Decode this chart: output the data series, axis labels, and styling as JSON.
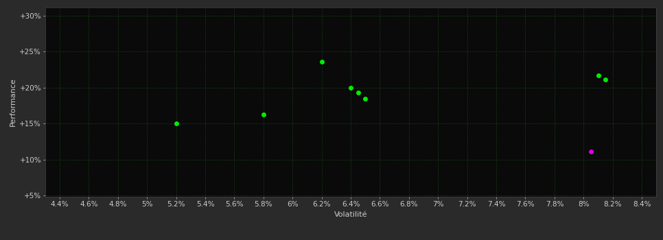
{
  "background_color": "#2a2a2a",
  "plot_bg_color": "#0a0a0a",
  "grid_color": "#1a4a1a",
  "text_color": "#cccccc",
  "xlabel": "Volatilité",
  "ylabel": "Performance",
  "xlim": [
    0.043,
    0.085
  ],
  "ylim": [
    0.048,
    0.312
  ],
  "xtick_values": [
    0.044,
    0.046,
    0.048,
    0.05,
    0.052,
    0.054,
    0.056,
    0.058,
    0.06,
    0.062,
    0.064,
    0.066,
    0.068,
    0.07,
    0.072,
    0.074,
    0.076,
    0.078,
    0.08,
    0.082,
    0.084
  ],
  "ytick_values": [
    0.05,
    0.1,
    0.15,
    0.2,
    0.25,
    0.3
  ],
  "ytick_labels": [
    "+5%",
    "+10%",
    "+15%",
    "+20%",
    "+25%",
    "+30%"
  ],
  "xtick_labels": [
    "4.4%",
    "4.6%",
    "4.8%",
    "5%",
    "5.2%",
    "5.4%",
    "5.6%",
    "5.8%",
    "6%",
    "6.2%",
    "6.4%",
    "6.6%",
    "6.8%",
    "7%",
    "7.2%",
    "7.4%",
    "7.6%",
    "7.8%",
    "8%",
    "8.2%",
    "8.4%"
  ],
  "green_points": [
    [
      0.062,
      0.236
    ],
    [
      0.064,
      0.2
    ],
    [
      0.0645,
      0.193
    ],
    [
      0.065,
      0.185
    ],
    [
      0.052,
      0.15
    ],
    [
      0.058,
      0.163
    ],
    [
      0.081,
      0.217
    ],
    [
      0.0815,
      0.211
    ]
  ],
  "magenta_points": [
    [
      0.0805,
      0.111
    ]
  ],
  "green_color": "#00ee00",
  "magenta_color": "#dd00dd",
  "marker_size": 5,
  "axis_fontsize": 8,
  "tick_fontsize": 7.5
}
